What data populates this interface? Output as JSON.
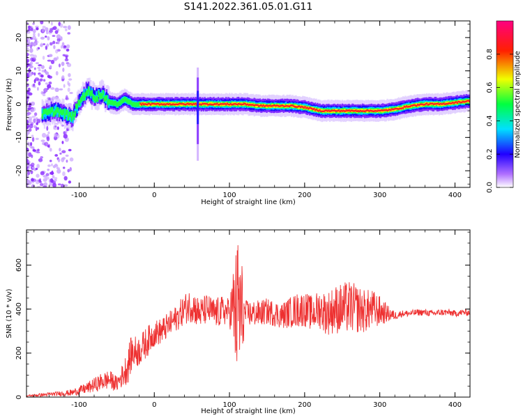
{
  "title": "S141.2022.361.05.01.G11",
  "chart_data": [
    {
      "type": "heatmap",
      "xlabel": "Height of straight line (km)",
      "ylabel": "Frequency (Hz)",
      "xlim": [
        -170,
        420
      ],
      "ylim": [
        -25,
        25
      ],
      "xticks": [
        "-100",
        "0",
        "100",
        "200",
        "300",
        "400"
      ],
      "yticks": [
        "-20",
        "-10",
        "0",
        "10",
        "20"
      ],
      "grid": false,
      "colorbar": {
        "label": "Normalized spectral amplitude",
        "range": [
          0,
          1
        ],
        "ticks": [
          "0.0",
          "0.2",
          "0.4",
          "0.6",
          "0.8"
        ],
        "colors": [
          "#ffffff",
          "#6a00ff",
          "#0000ff",
          "#00ffff",
          "#00ff00",
          "#ffff00",
          "#ff0000",
          "#ff0080"
        ]
      },
      "ridge": {
        "x": [
          -150,
          -140,
          -130,
          -120,
          -110,
          -100,
          -90,
          -80,
          -70,
          -60,
          -50,
          -40,
          -30,
          -20,
          0,
          20,
          40,
          55,
          60,
          80,
          100,
          120,
          140,
          160,
          180,
          200,
          220,
          240,
          260,
          280,
          300,
          320,
          340,
          360,
          380,
          400,
          420
        ],
        "y": [
          -3,
          -2.5,
          -2,
          -3,
          -4,
          1,
          4,
          2,
          3,
          0.5,
          0,
          1.5,
          0,
          0,
          0,
          0,
          0,
          0,
          0,
          0,
          0,
          0,
          -0.5,
          -0.5,
          -0.5,
          -1,
          -2,
          -2,
          -2,
          -2,
          -2,
          -1.5,
          -0.5,
          0,
          0,
          0.5,
          1
        ]
      }
    },
    {
      "type": "line",
      "xlabel": "Height of straight line (km)",
      "ylabel": "SNR (10 * v/v)",
      "xlim": [
        -170,
        420
      ],
      "ylim": [
        0,
        760
      ],
      "xticks": [
        "-100",
        "0",
        "100",
        "200",
        "300",
        "400"
      ],
      "yticks": [
        "0",
        "200",
        "400",
        "600"
      ],
      "grid": false,
      "series": [
        {
          "color": "#ee3030",
          "x": [
            -170,
            -150,
            -130,
            -110,
            -90,
            -70,
            -60,
            -50,
            -40,
            -35,
            -30,
            -20,
            -10,
            0,
            10,
            20,
            30,
            40,
            50,
            60,
            70,
            80,
            90,
            100,
            105,
            110,
            112,
            114,
            116,
            120,
            130,
            140,
            150,
            160,
            170,
            180,
            190,
            200,
            210,
            220,
            230,
            240,
            250,
            260,
            270,
            280,
            290,
            300,
            310,
            320,
            330,
            340,
            350,
            360,
            370,
            380,
            390,
            400,
            410,
            420
          ],
          "y": [
            5,
            10,
            15,
            20,
            40,
            70,
            80,
            60,
            110,
            150,
            200,
            210,
            250,
            290,
            300,
            330,
            360,
            400,
            420,
            380,
            400,
            380,
            390,
            390,
            400,
            380,
            420,
            390,
            360,
            380,
            380,
            380,
            390,
            380,
            370,
            385,
            395,
            400,
            380,
            400,
            380,
            400,
            400,
            410,
            400,
            390,
            400,
            390,
            380,
            370,
            380,
            380,
            385,
            385,
            380,
            385,
            385,
            380,
            385,
            385
          ],
          "spread": [
            4,
            8,
            10,
            15,
            25,
            40,
            45,
            35,
            60,
            90,
            80,
            70,
            70,
            60,
            60,
            60,
            60,
            70,
            80,
            70,
            70,
            70,
            70,
            60,
            200,
            330,
            340,
            340,
            300,
            60,
            60,
            60,
            60,
            60,
            60,
            70,
            80,
            80,
            80,
            90,
            100,
            110,
            120,
            120,
            110,
            100,
            90,
            70,
            40,
            20,
            15,
            15,
            15,
            15,
            15,
            15,
            15,
            15,
            15,
            15
          ]
        }
      ]
    }
  ]
}
